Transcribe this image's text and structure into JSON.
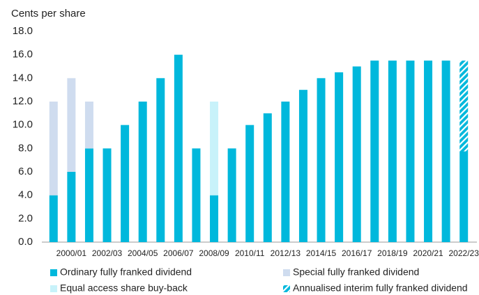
{
  "chart_data": {
    "type": "stacked_bar",
    "y_label": "Cents per share",
    "categories": [
      null,
      "2000/01",
      null,
      "2002/03",
      null,
      "2004/05",
      null,
      "2006/07",
      null,
      "2008/09",
      null,
      "2010/11",
      null,
      "2012/13",
      null,
      "2014/15",
      null,
      "2016/17",
      null,
      "2018/19",
      null,
      "2020/21",
      null,
      "2022/23"
    ],
    "series": [
      {
        "name": "Ordinary fully franked dividend",
        "color": "#00b8dc",
        "values": [
          4,
          6,
          8,
          8,
          10,
          12,
          14,
          16,
          8,
          4,
          8,
          10,
          11,
          12,
          13,
          14,
          14.5,
          15,
          15.5,
          15.5,
          15.5,
          15.5,
          15.5,
          7.75
        ]
      },
      {
        "name": "Special fully franked dividend",
        "color": "#cfdcef",
        "values": [
          8,
          8,
          4,
          0,
          0,
          0,
          0,
          0,
          0,
          0,
          0,
          0,
          0,
          0,
          0,
          0,
          0,
          0,
          0,
          0,
          0,
          0,
          0,
          0
        ]
      },
      {
        "name": "Equal access share buy-back",
        "color": "#c8f2fa",
        "values": [
          0,
          0,
          0,
          0,
          0,
          0,
          0,
          0,
          0,
          8,
          0,
          0,
          0,
          0,
          0,
          0,
          0,
          0,
          0,
          0,
          0,
          0,
          0,
          0
        ]
      },
      {
        "name": "Annualised interim fully franked dividend",
        "color": "#00b8dc",
        "pattern": "hatched",
        "values": [
          0,
          0,
          0,
          0,
          0,
          0,
          0,
          0,
          0,
          0,
          0,
          0,
          0,
          0,
          0,
          0,
          0,
          0,
          0,
          0,
          0,
          0,
          0,
          7.75
        ]
      }
    ],
    "ylim": [
      0,
      18
    ],
    "yticks": [
      {
        "value": 0,
        "label": "0.0"
      },
      {
        "value": 2,
        "label": "2.0"
      },
      {
        "value": 4,
        "label": "4.0"
      },
      {
        "value": 6,
        "label": "6.0"
      },
      {
        "value": 8,
        "label": "8.0"
      },
      {
        "value": 10,
        "label": "10.0"
      },
      {
        "value": 12,
        "label": "12.0"
      },
      {
        "value": 14,
        "label": "14.0"
      },
      {
        "value": 16,
        "label": "16.0"
      },
      {
        "value": 18,
        "label": "18.0"
      }
    ],
    "grid": false
  }
}
